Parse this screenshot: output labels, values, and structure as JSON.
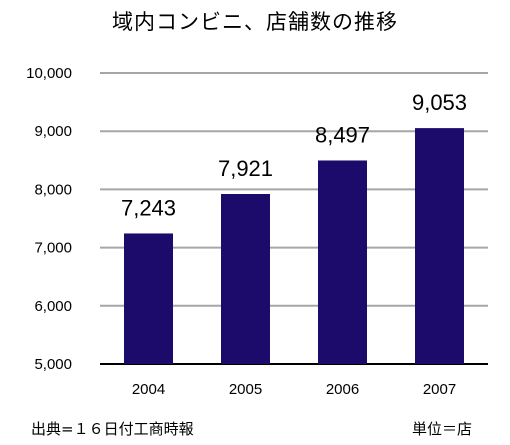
{
  "chart_data": {
    "type": "bar",
    "title": "域内コンビニ、店舗数の推移",
    "categories": [
      "2004",
      "2005",
      "2006",
      "2007"
    ],
    "values": [
      7243,
      7921,
      8497,
      9053
    ],
    "data_labels": [
      "7,243",
      "7,921",
      "8,497",
      "9,053"
    ],
    "ylim": [
      5000,
      10000
    ],
    "yticks": [
      "5,000",
      "6,000",
      "7,000",
      "8,000",
      "9,000",
      "10,000"
    ],
    "ytick_values": [
      5000,
      6000,
      7000,
      8000,
      9000,
      10000
    ],
    "xlabel": "",
    "ylabel": "",
    "grid": true,
    "bar_color": "#1d0b6b",
    "grid_color": "#a6a6a6"
  },
  "footer": {
    "source": "出典=１６日付工商時報",
    "unit": "単位＝店"
  }
}
